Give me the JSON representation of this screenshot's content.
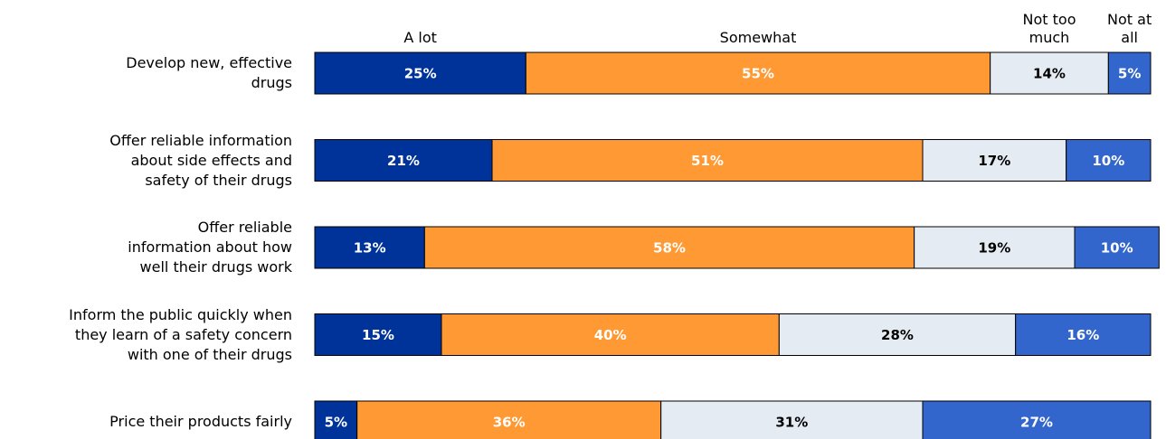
{
  "chart_data": {
    "type": "stacked-bar",
    "categories": [
      "Develop new, effective\ndrugs",
      "Offer reliable information\nabout side effects and\nsafety of their drugs",
      "Offer reliable\ninformation about how\nwell their drugs work",
      "Inform the public quickly when\nthey learn of a safety concern\nwith one of their drugs",
      "Price their products fairly"
    ],
    "series": [
      {
        "name": "A lot",
        "color": "#003399",
        "values": [
          25,
          21,
          13,
          15,
          5
        ],
        "value_labels": [
          "25%",
          "21%",
          "13%",
          "15%",
          "5%"
        ]
      },
      {
        "name": "Somewhat",
        "color": "#ff9933",
        "values": [
          55,
          51,
          58,
          40,
          36
        ],
        "value_labels": [
          "55%",
          "51%",
          "58%",
          "40%",
          "36%"
        ]
      },
      {
        "name": "Not too\nmuch",
        "color": "#e5ebf2",
        "values": [
          14,
          17,
          19,
          28,
          31
        ],
        "value_labels": [
          "14%",
          "17%",
          "19%",
          "28%",
          "31%"
        ]
      },
      {
        "name": "Not at\nall",
        "color": "#3366cc",
        "values": [
          5,
          10,
          10,
          16,
          27
        ],
        "value_labels": [
          "5%",
          "10%",
          "10%",
          "16%",
          "27%"
        ]
      }
    ],
    "xlim": [
      0,
      99
    ]
  }
}
